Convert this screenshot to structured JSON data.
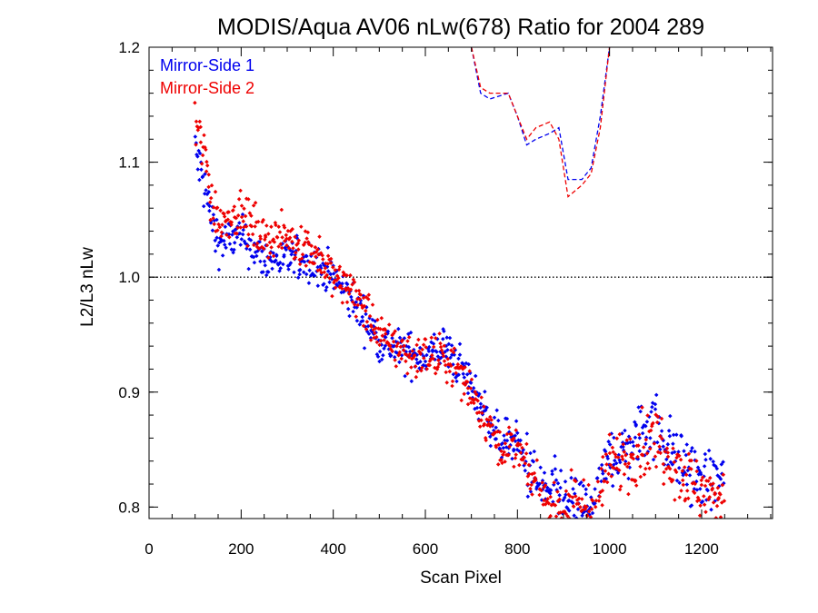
{
  "chart_data": {
    "type": "scatter",
    "title": "MODIS/Aqua AV06 nLw(678) Ratio for 2004 289",
    "xlabel": "Scan Pixel",
    "ylabel": "L2/L3 nLw",
    "xlim": [
      0,
      1354
    ],
    "ylim": [
      0.79,
      1.2
    ],
    "xticks": [
      0,
      200,
      400,
      600,
      800,
      1000,
      1200
    ],
    "xtick_labels": [
      "0",
      "200",
      "400",
      "600",
      "800",
      "1000",
      "1200"
    ],
    "yticks": [
      0.8,
      0.9,
      1.0,
      1.1,
      1.2
    ],
    "ytick_labels": [
      "0.8",
      "0.9",
      "1.0",
      "1.1",
      "1.2"
    ],
    "reference_line": {
      "y": 1.0,
      "style": "dotted"
    },
    "legend_position": "top-left",
    "series": [
      {
        "name": "Mirror-Side 1",
        "color": "#0000ee",
        "trend": [
          [
            100,
            1.11
          ],
          [
            120,
            1.08
          ],
          [
            135,
            1.05
          ],
          [
            150,
            1.03
          ],
          [
            200,
            1.035
          ],
          [
            250,
            1.015
          ],
          [
            300,
            1.015
          ],
          [
            350,
            1.015
          ],
          [
            400,
            1.0
          ],
          [
            450,
            0.975
          ],
          [
            500,
            0.945
          ],
          [
            550,
            0.935
          ],
          [
            600,
            0.93
          ],
          [
            640,
            0.94
          ],
          [
            680,
            0.92
          ],
          [
            720,
            0.89
          ],
          [
            760,
            0.86
          ],
          [
            800,
            0.855
          ],
          [
            840,
            0.82
          ],
          [
            880,
            0.81
          ],
          [
            940,
            0.8
          ],
          [
            970,
            0.8
          ],
          [
            1000,
            0.845
          ],
          [
            1040,
            0.85
          ],
          [
            1080,
            0.87
          ],
          [
            1100,
            0.875
          ],
          [
            1140,
            0.845
          ],
          [
            1180,
            0.83
          ],
          [
            1220,
            0.82
          ],
          [
            1250,
            0.825
          ]
        ],
        "ratio_dashed": [
          [
            700,
            1.2
          ],
          [
            720,
            1.16
          ],
          [
            740,
            1.155
          ],
          [
            780,
            1.16
          ],
          [
            800,
            1.14
          ],
          [
            820,
            1.115
          ],
          [
            840,
            1.12
          ],
          [
            870,
            1.125
          ],
          [
            890,
            1.13
          ],
          [
            910,
            1.085
          ],
          [
            940,
            1.085
          ],
          [
            960,
            1.095
          ],
          [
            980,
            1.14
          ],
          [
            1000,
            1.2
          ]
        ]
      },
      {
        "name": "Mirror-Side 2",
        "color": "#ee0000",
        "trend": [
          [
            100,
            1.13
          ],
          [
            120,
            1.11
          ],
          [
            135,
            1.07
          ],
          [
            150,
            1.05
          ],
          [
            200,
            1.055
          ],
          [
            250,
            1.035
          ],
          [
            300,
            1.035
          ],
          [
            350,
            1.025
          ],
          [
            400,
            1.0
          ],
          [
            450,
            0.985
          ],
          [
            500,
            0.95
          ],
          [
            550,
            0.935
          ],
          [
            600,
            0.93
          ],
          [
            640,
            0.93
          ],
          [
            680,
            0.915
          ],
          [
            720,
            0.885
          ],
          [
            760,
            0.855
          ],
          [
            800,
            0.85
          ],
          [
            840,
            0.815
          ],
          [
            880,
            0.8
          ],
          [
            940,
            0.8
          ],
          [
            970,
            0.8
          ],
          [
            1000,
            0.835
          ],
          [
            1040,
            0.845
          ],
          [
            1080,
            0.855
          ],
          [
            1100,
            0.86
          ],
          [
            1140,
            0.84
          ],
          [
            1180,
            0.82
          ],
          [
            1220,
            0.81
          ],
          [
            1250,
            0.815
          ]
        ],
        "ratio_dashed": [
          [
            700,
            1.2
          ],
          [
            720,
            1.165
          ],
          [
            740,
            1.16
          ],
          [
            780,
            1.16
          ],
          [
            800,
            1.14
          ],
          [
            820,
            1.12
          ],
          [
            840,
            1.13
          ],
          [
            870,
            1.135
          ],
          [
            890,
            1.12
          ],
          [
            910,
            1.07
          ],
          [
            940,
            1.08
          ],
          [
            960,
            1.09
          ],
          [
            980,
            1.13
          ],
          [
            1000,
            1.2
          ]
        ]
      }
    ]
  }
}
